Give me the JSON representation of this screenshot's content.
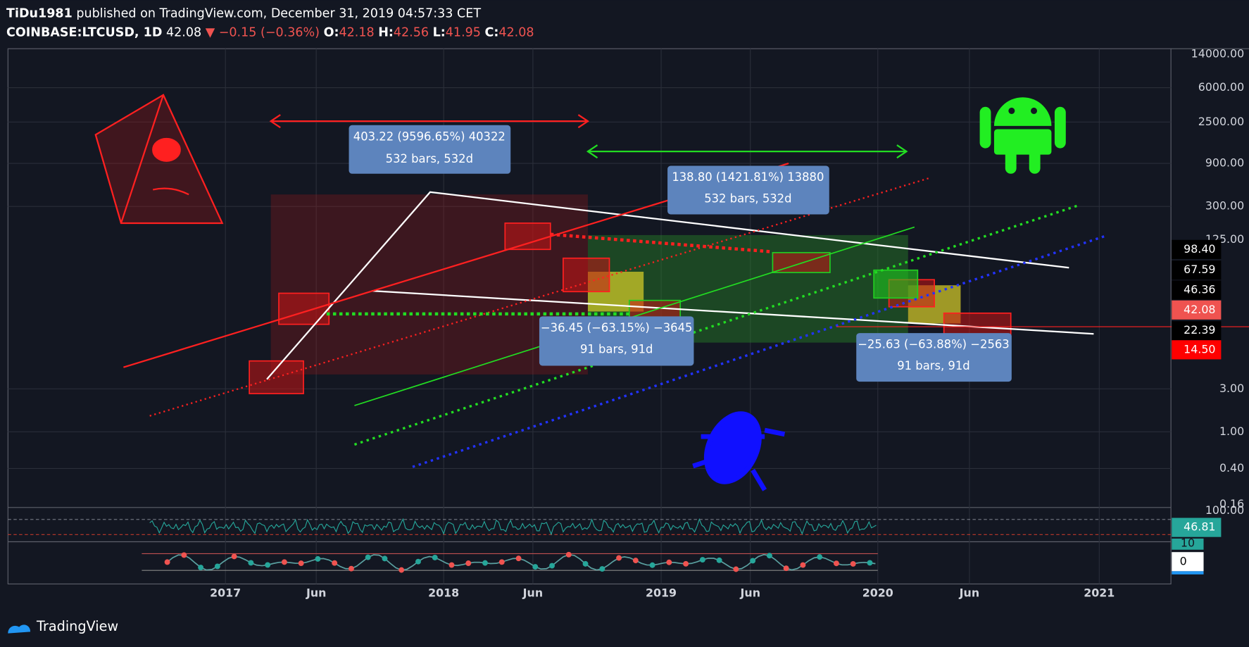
{
  "header": {
    "publisher": "TiDu1981",
    "published": "published on TradingView.com, December 31, 2019 04:57:33 CET",
    "symbol": "COINBASE:LTCUSD, 1D",
    "last": "42.08",
    "change": "▼ −0.15 (−0.36%)",
    "open_label": "O:",
    "open": "42.18",
    "high_label": "H:",
    "high": "42.56",
    "low_label": "L:",
    "low": "41.95",
    "close_label": "C:",
    "close": "42.08"
  },
  "price_axis": {
    "ticks": [
      "14000.00",
      "6000.00",
      "2500.00",
      "900.00",
      "300.00",
      "125.00",
      "3.00",
      "1.00",
      "0.40",
      "0.16"
    ],
    "badges": [
      "98.40",
      "67.59",
      "46.36",
      "42.08",
      "22.39",
      "14.50"
    ]
  },
  "indicator_axis": {
    "rsi_top": "100.00",
    "rsi_value": "46.81",
    "osc_top": "10",
    "osc_value": "0"
  },
  "time_axis": [
    "2017",
    "Jun",
    "2018",
    "Jun",
    "2019",
    "Jun",
    "2020",
    "Jun",
    "2021"
  ],
  "measurements": [
    {
      "line1": "403.22 (9596.65%) 40322",
      "line2": "532 bars, 532d"
    },
    {
      "line1": "138.80 (1421.81%) 13880",
      "line2": "532 bars, 532d"
    },
    {
      "line1": "−36.45 (−63.15%) −3645",
      "line2": "91 bars, 91d"
    },
    {
      "line1": "−25.63 (−63.88%) −2563",
      "line2": "91 bars, 91d"
    }
  ],
  "footer": {
    "brand": "TradingView"
  }
}
